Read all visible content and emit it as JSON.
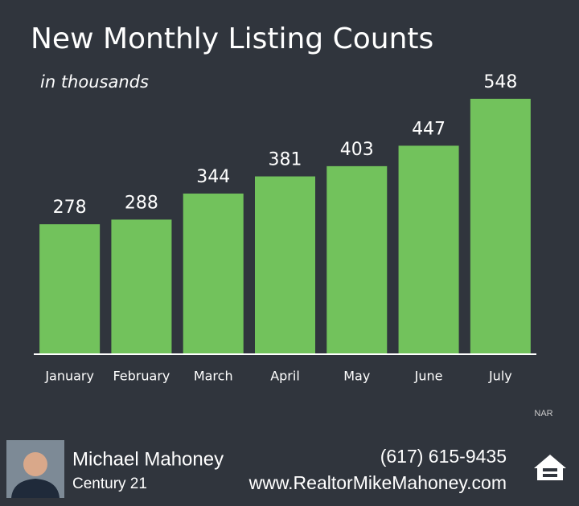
{
  "chart_data": {
    "type": "bar",
    "title": "New Monthly Listing Counts",
    "subtitle": "in thousands",
    "categories": [
      "January",
      "February",
      "March",
      "April",
      "May",
      "June",
      "July"
    ],
    "values": [
      278,
      288,
      344,
      381,
      403,
      447,
      548
    ],
    "color": "#72c25c",
    "source": "NAR"
  },
  "footer": {
    "name": "Michael Mahoney",
    "company": "Century 21",
    "phone": "(617) 615-9435",
    "website": "www.RealtorMikeMahoney.com"
  }
}
